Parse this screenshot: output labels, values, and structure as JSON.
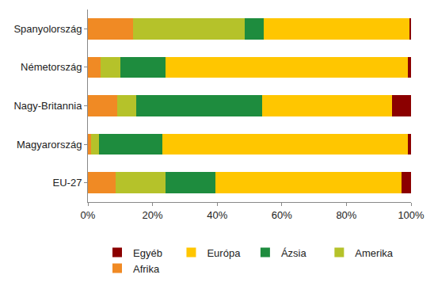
{
  "chart_data": {
    "type": "bar",
    "orientation": "horizontal",
    "stacked": true,
    "grid": false,
    "legend": "bottom",
    "categories": [
      "Spanyolország",
      "Németország",
      "Nagy-Britannia",
      "Magyarország",
      "EU-27"
    ],
    "series": [
      {
        "name": "Afrika",
        "color": "#f08a24",
        "values": [
          14,
          4,
          9,
          1,
          8.5
        ]
      },
      {
        "name": "Amerika",
        "color": "#b5c22a",
        "values": [
          34.5,
          6,
          6,
          2.5,
          15.5
        ]
      },
      {
        "name": "Ázsia",
        "color": "#1e8c3e",
        "values": [
          6,
          14,
          39,
          19.5,
          15.5
        ]
      },
      {
        "name": "Európa",
        "color": "#ffc600",
        "values": [
          45,
          75,
          40,
          76,
          57.5
        ]
      },
      {
        "name": "Egyéb",
        "color": "#8b0000",
        "values": [
          0.5,
          1,
          6,
          1,
          3
        ]
      }
    ],
    "xlim": [
      0,
      100
    ],
    "xticks": [
      {
        "value": 0,
        "label": "0%"
      },
      {
        "value": 20,
        "label": "20%"
      },
      {
        "value": 40,
        "label": "40%"
      },
      {
        "value": 60,
        "label": "60%"
      },
      {
        "value": 80,
        "label": "80%"
      },
      {
        "value": 100,
        "label": "100%"
      }
    ]
  }
}
